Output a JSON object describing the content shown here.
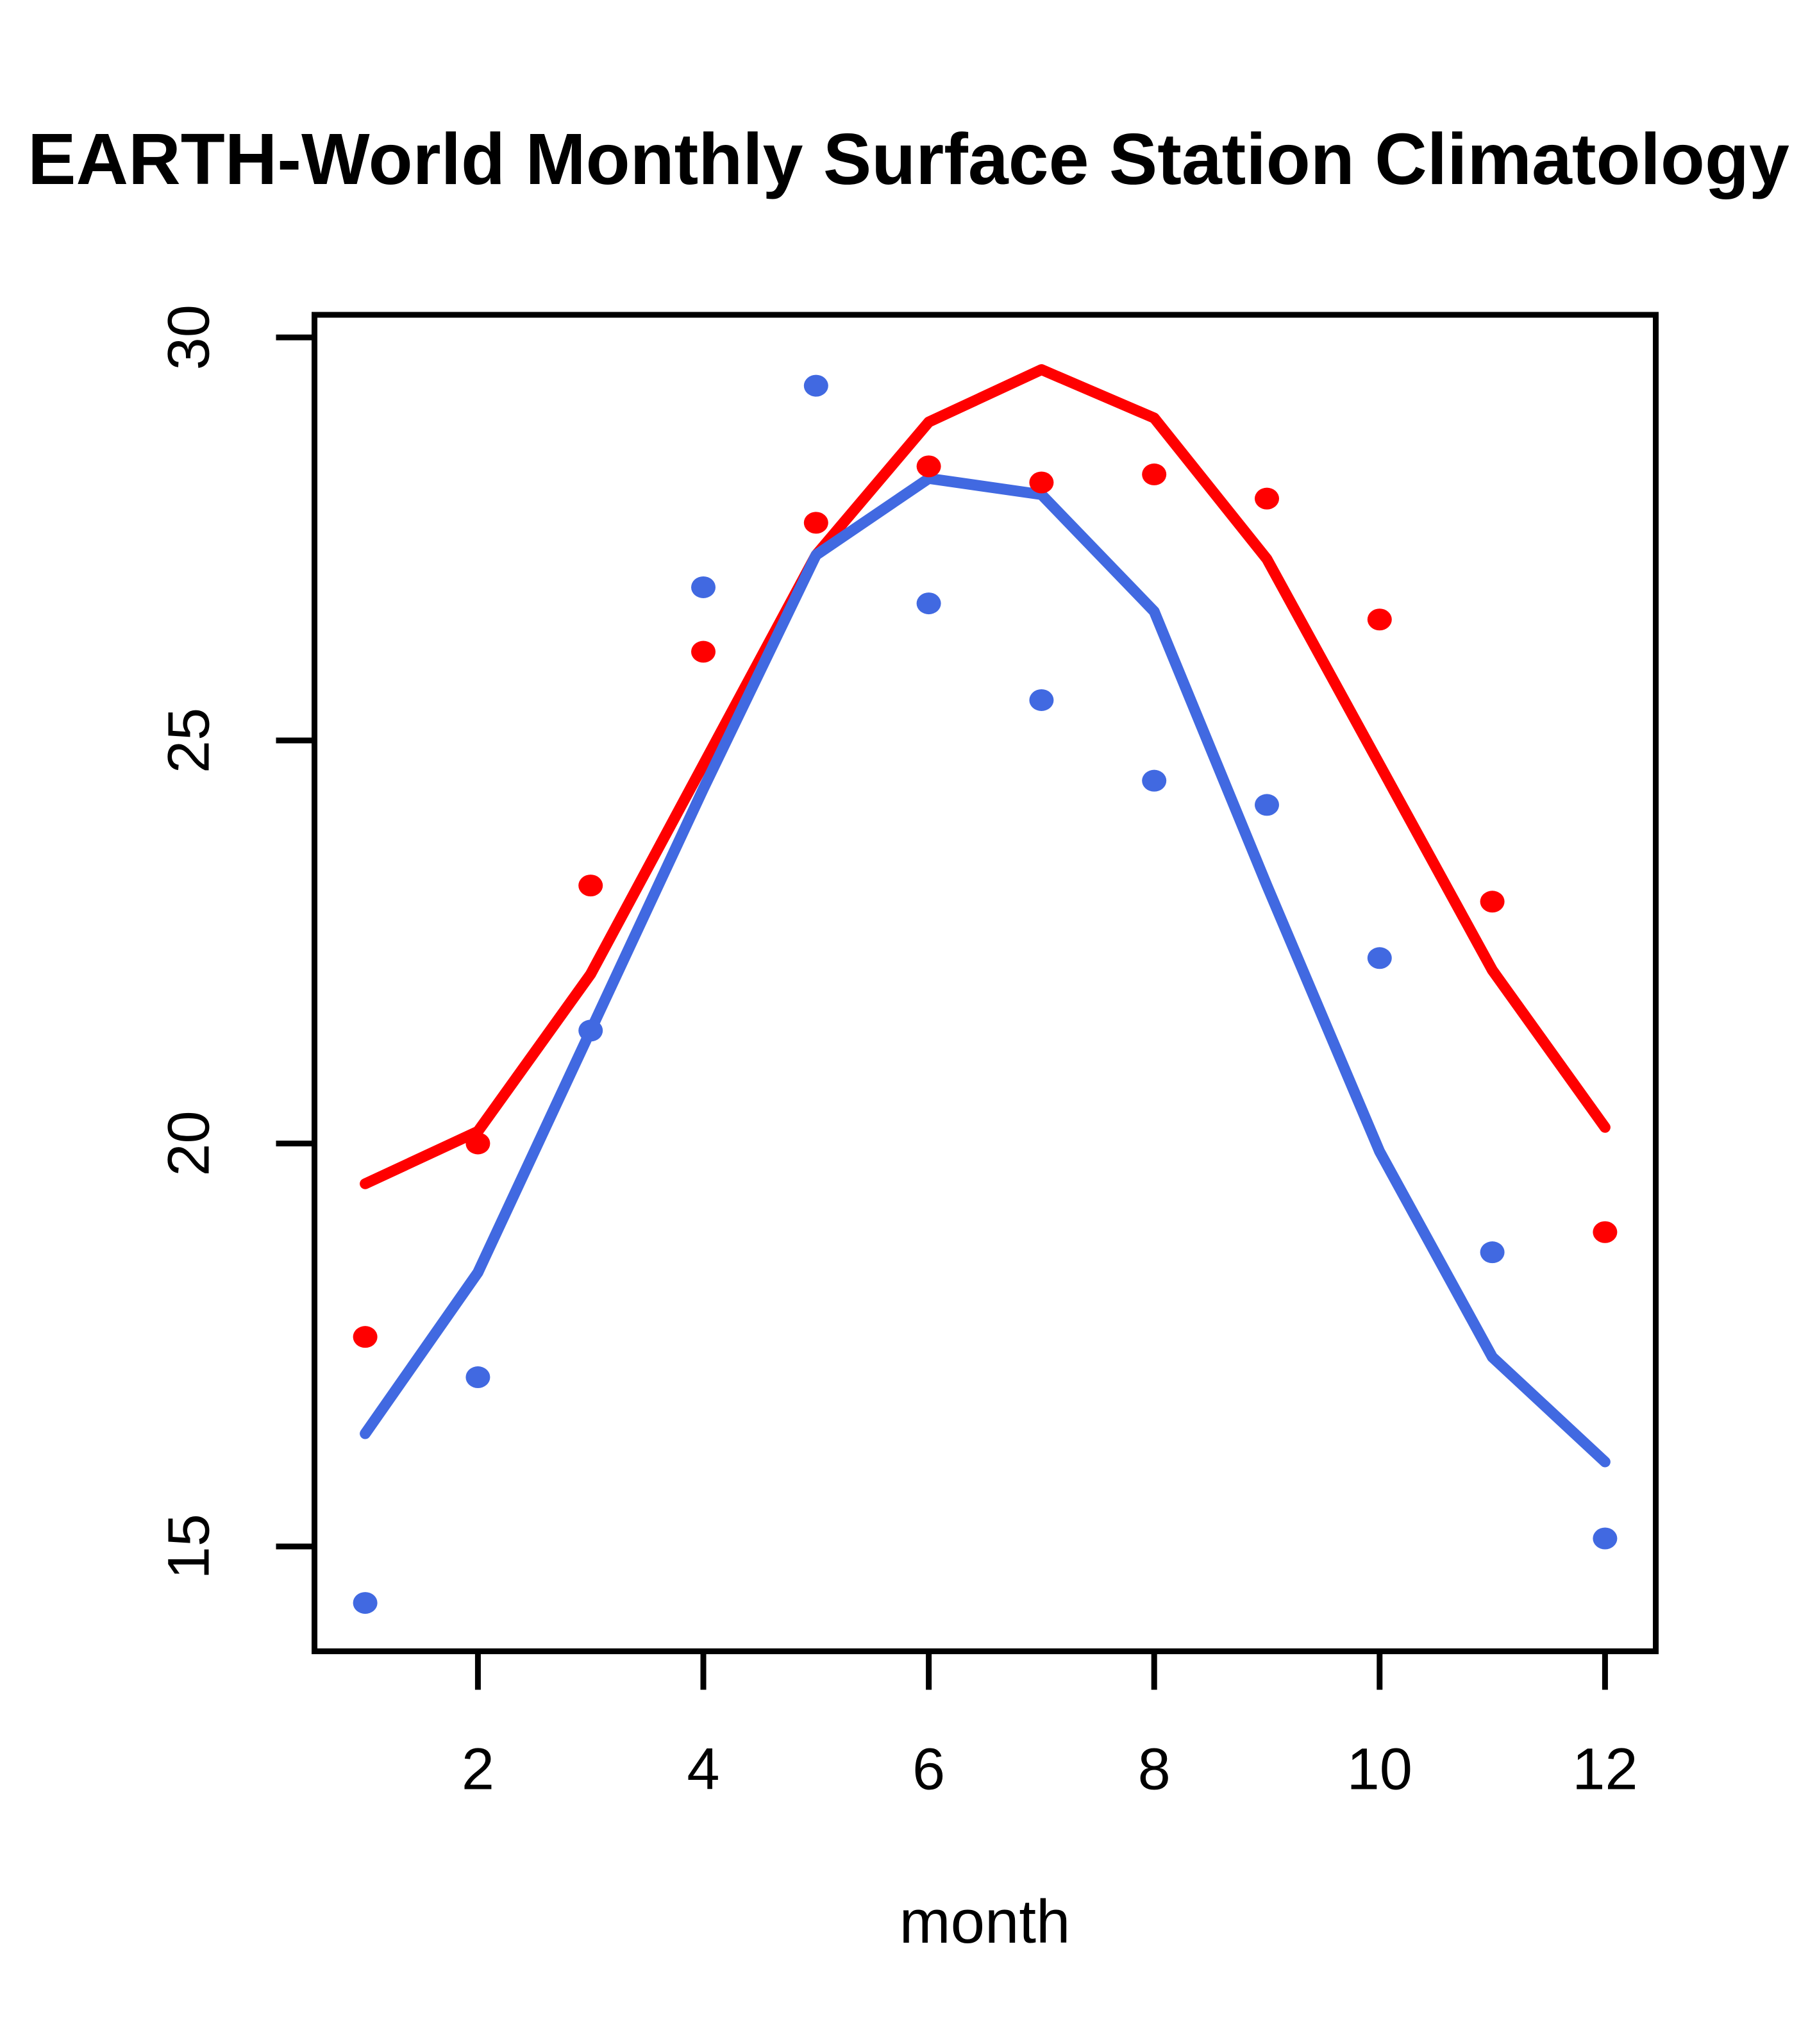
{
  "title": "EARTH-World Monthly Surface Station Climatology",
  "colors": {
    "red": "#FF0000",
    "blue": "#4169E1",
    "axis": "#000000",
    "background": "#FFFFFF"
  },
  "chart_data": {
    "type": "line",
    "title": "EARTH-World Monthly Surface Station Climatology",
    "xlabel": "month",
    "ylabel": "",
    "x": [
      1,
      2,
      3,
      4,
      5,
      6,
      7,
      8,
      9,
      10,
      11,
      12
    ],
    "x_tick_labels": [
      "2",
      "4",
      "6",
      "8",
      "10",
      "12"
    ],
    "x_ticks": [
      2,
      4,
      6,
      8,
      10,
      12
    ],
    "y_tick_labels": [
      "15",
      "20",
      "25",
      "30"
    ],
    "y_ticks": [
      15,
      20,
      25,
      30
    ],
    "xlim": [
      0.55,
      12.45
    ],
    "ylim": [
      13.7,
      30.28
    ],
    "grid": false,
    "legend_position": "none",
    "series": [
      {
        "name": "red-fit-line",
        "kind": "line",
        "color": "#FF0000",
        "values": [
          19.5,
          20.15,
          22.1,
          24.7,
          27.3,
          28.95,
          29.6,
          29.0,
          27.25,
          24.7,
          22.15,
          20.2
        ]
      },
      {
        "name": "blue-fit-line",
        "kind": "line",
        "color": "#4169E1",
        "values": [
          16.4,
          18.4,
          21.4,
          24.4,
          27.3,
          28.25,
          28.05,
          26.6,
          23.2,
          19.9,
          17.35,
          16.05
        ]
      },
      {
        "name": "red-points",
        "kind": "scatter",
        "color": "#FF0000",
        "values": [
          17.6,
          20.0,
          23.2,
          26.1,
          27.7,
          28.4,
          28.2,
          28.3,
          28.0,
          26.5,
          23.0,
          18.9
        ]
      },
      {
        "name": "blue-points",
        "kind": "scatter",
        "color": "#4169E1",
        "values": [
          14.3,
          17.1,
          21.4,
          26.9,
          29.4,
          26.7,
          25.5,
          24.5,
          24.2,
          22.3,
          18.65,
          15.1
        ]
      }
    ]
  }
}
